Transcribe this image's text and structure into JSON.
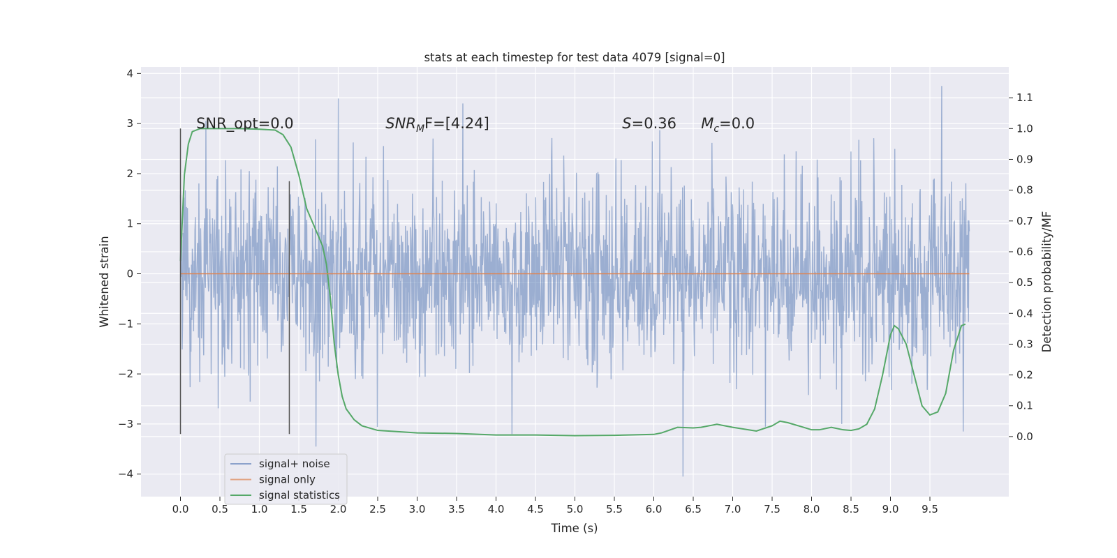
{
  "chart_data": {
    "type": "line",
    "title": "stats at each timestep for test data 4079 [signal=0]",
    "xlabel": "Time (s)",
    "ylabel": "Whitened strain",
    "y2label": "Detection probability/MF",
    "xlim": [
      -0.5,
      10.5
    ],
    "ylim": [
      -4.45,
      4.13
    ],
    "y2lim": [
      -0.195,
      1.2
    ],
    "x_ticks": [
      0.0,
      0.5,
      1.0,
      1.5,
      2.0,
      2.5,
      3.0,
      3.5,
      4.0,
      4.5,
      5.0,
      5.5,
      6.0,
      6.5,
      7.0,
      7.5,
      8.0,
      8.5,
      9.0,
      9.5
    ],
    "x_tick_labels": [
      "0.0",
      "0.5",
      "1.0",
      "1.5",
      "2.0",
      "2.5",
      "3.0",
      "3.5",
      "4.0",
      "4.5",
      "5.0",
      "5.5",
      "6.0",
      "6.5",
      "7.0",
      "7.5",
      "8.0",
      "8.5",
      "9.0",
      "9.5"
    ],
    "y_ticks": [
      -4,
      -3,
      -2,
      -1,
      0,
      1,
      2,
      3,
      4
    ],
    "y_tick_labels": [
      "−4",
      "−3",
      "−2",
      "−1",
      "0",
      "1",
      "2",
      "3",
      "4"
    ],
    "y2_ticks": [
      0.0,
      0.1,
      0.2,
      0.3,
      0.4,
      0.5,
      0.6,
      0.7,
      0.8,
      0.9,
      1.0,
      1.1
    ],
    "y2_tick_labels": [
      "0.0",
      "0.1",
      "0.2",
      "0.3",
      "0.4",
      "0.5",
      "0.6",
      "0.7",
      "0.8",
      "0.9",
      "1.0",
      "1.1"
    ],
    "grid": true,
    "legend": {
      "placement": "lower-left",
      "entries": [
        {
          "label": "signal+ noise",
          "color": "#4c72b0"
        },
        {
          "label": "signal only",
          "color": "#dd8452"
        },
        {
          "label": "signal statistics",
          "color": "#55a868"
        }
      ]
    },
    "annotations": [
      {
        "text": "SNR_opt=0.0",
        "x": 0.2,
        "y": 3.0
      },
      {
        "sym": "SNR",
        "sub": "M",
        "rest": "F=[4.24]",
        "x": 2.6,
        "y": 3.0
      },
      {
        "sym": "S",
        "rest": "=0.36",
        "x": 5.6,
        "y": 3.0
      },
      {
        "sym": "M",
        "sub": "c",
        "rest": "=0.0",
        "x": 6.6,
        "y": 3.0
      }
    ],
    "vertical_markers": [
      {
        "x": 0.0,
        "y_range": [
          -3.2,
          2.9
        ]
      },
      {
        "x": 1.38,
        "y_range": [
          -3.2,
          1.85
        ]
      }
    ],
    "noise_series": {
      "name": "signal+ noise",
      "x_range": [
        0,
        10
      ],
      "samples": 1800,
      "sigma": 0.95,
      "color": "#4c72b0",
      "spikes": [
        {
          "x": 1.72,
          "y": -3.45
        },
        {
          "x": 2.0,
          "y": 3.5
        },
        {
          "x": 6.37,
          "y": -4.05
        },
        {
          "x": 9.65,
          "y": 3.75
        },
        {
          "x": 3.2,
          "y": 2.7
        },
        {
          "x": 8.38,
          "y": -3.0
        },
        {
          "x": 4.2,
          "y": -3.2
        },
        {
          "x": 9.92,
          "y": -3.15
        }
      ]
    },
    "series": [
      {
        "name": "signal statistics",
        "axis": "y2",
        "color": "#55a868",
        "points": [
          [
            0.0,
            0.57
          ],
          [
            0.05,
            0.85
          ],
          [
            0.1,
            0.95
          ],
          [
            0.15,
            0.99
          ],
          [
            0.25,
            1.0
          ],
          [
            0.5,
            1.0
          ],
          [
            0.75,
            1.0
          ],
          [
            1.0,
            0.998
          ],
          [
            1.2,
            0.995
          ],
          [
            1.3,
            0.98
          ],
          [
            1.4,
            0.94
          ],
          [
            1.5,
            0.85
          ],
          [
            1.6,
            0.74
          ],
          [
            1.7,
            0.68
          ],
          [
            1.8,
            0.62
          ],
          [
            1.85,
            0.56
          ],
          [
            1.9,
            0.45
          ],
          [
            1.95,
            0.3
          ],
          [
            2.0,
            0.2
          ],
          [
            2.05,
            0.13
          ],
          [
            2.1,
            0.09
          ],
          [
            2.2,
            0.055
          ],
          [
            2.3,
            0.035
          ],
          [
            2.5,
            0.02
          ],
          [
            3.0,
            0.012
          ],
          [
            3.5,
            0.01
          ],
          [
            4.0,
            0.005
          ],
          [
            4.5,
            0.005
          ],
          [
            5.0,
            0.003
          ],
          [
            5.5,
            0.004
          ],
          [
            6.0,
            0.007
          ],
          [
            6.1,
            0.012
          ],
          [
            6.3,
            0.03
          ],
          [
            6.5,
            0.028
          ],
          [
            6.6,
            0.03
          ],
          [
            6.8,
            0.04
          ],
          [
            7.0,
            0.03
          ],
          [
            7.3,
            0.018
          ],
          [
            7.5,
            0.035
          ],
          [
            7.6,
            0.05
          ],
          [
            7.7,
            0.045
          ],
          [
            7.9,
            0.03
          ],
          [
            8.0,
            0.022
          ],
          [
            8.1,
            0.022
          ],
          [
            8.25,
            0.03
          ],
          [
            8.4,
            0.022
          ],
          [
            8.5,
            0.02
          ],
          [
            8.6,
            0.025
          ],
          [
            8.7,
            0.04
          ],
          [
            8.8,
            0.09
          ],
          [
            8.9,
            0.2
          ],
          [
            9.0,
            0.33
          ],
          [
            9.05,
            0.36
          ],
          [
            9.1,
            0.35
          ],
          [
            9.2,
            0.3
          ],
          [
            9.3,
            0.2
          ],
          [
            9.4,
            0.1
          ],
          [
            9.5,
            0.07
          ],
          [
            9.6,
            0.08
          ],
          [
            9.7,
            0.14
          ],
          [
            9.8,
            0.28
          ],
          [
            9.9,
            0.36
          ],
          [
            9.95,
            0.365
          ]
        ]
      },
      {
        "name": "signal only",
        "axis": "y",
        "color": "#dd8452",
        "points": [
          [
            0.0,
            0.0
          ],
          [
            10.0,
            0.0
          ]
        ]
      }
    ]
  }
}
